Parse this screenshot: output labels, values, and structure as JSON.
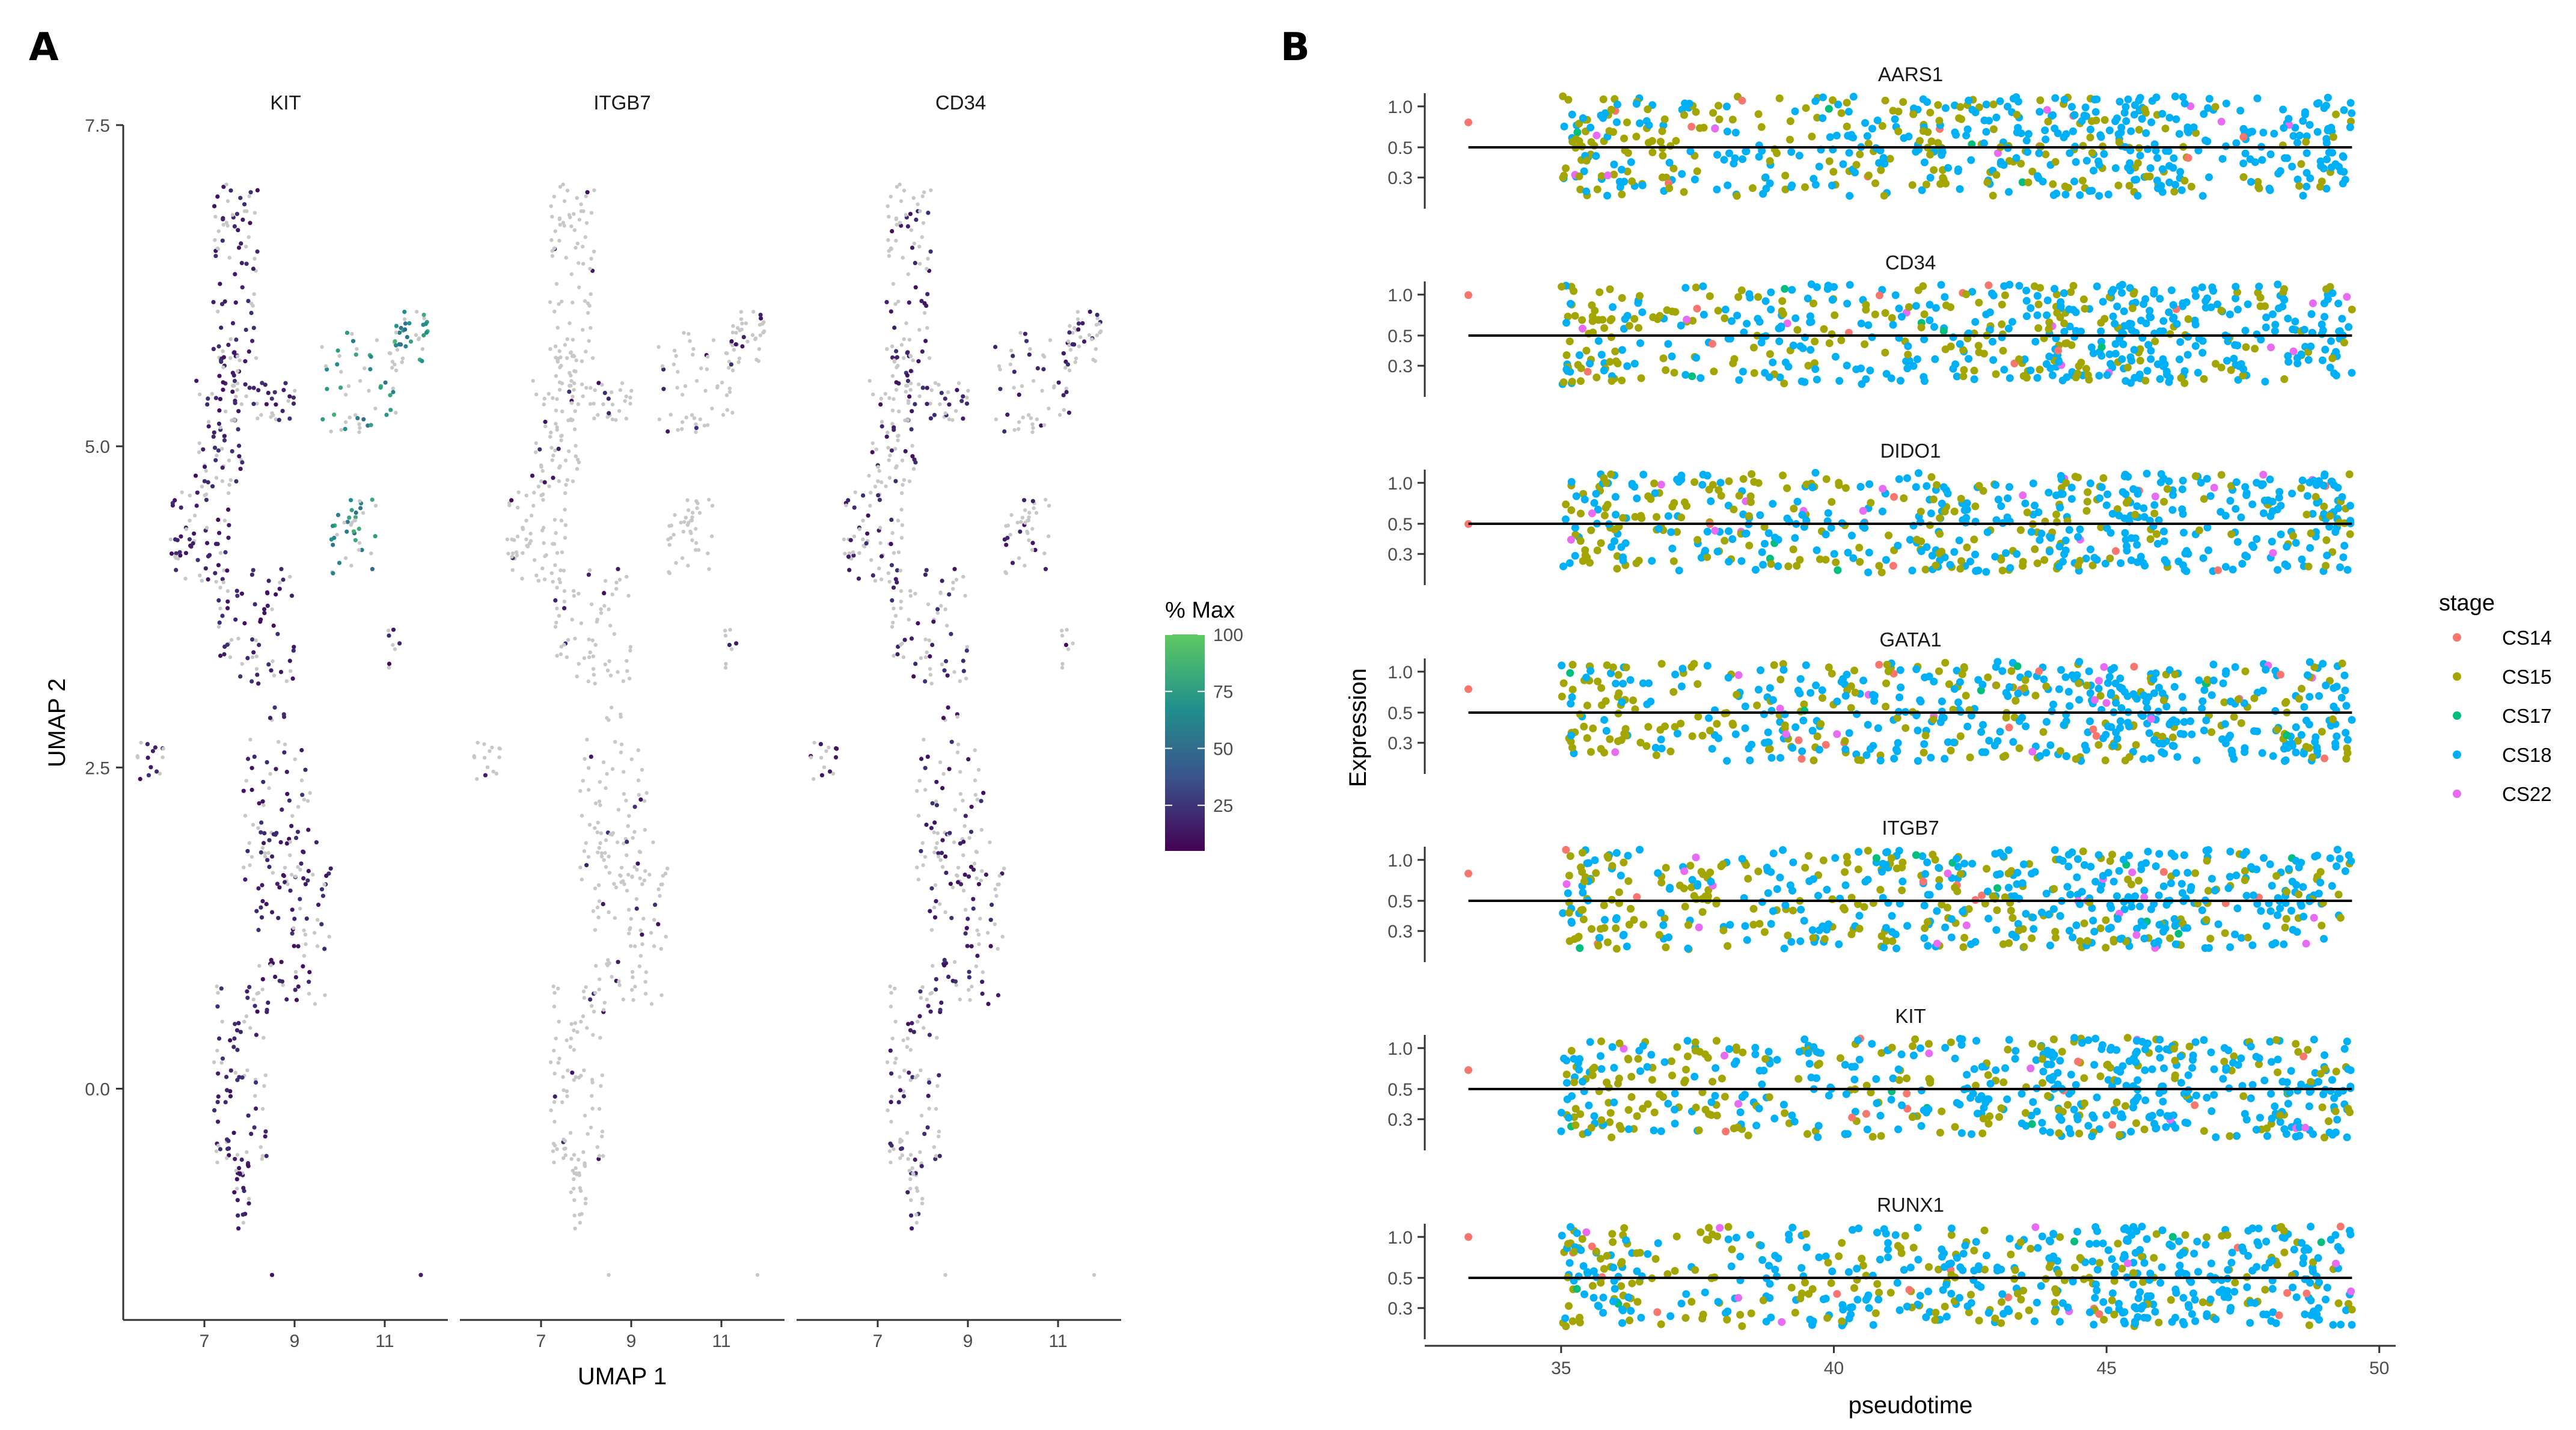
{
  "panel_labels": [
    "A",
    "B"
  ],
  "chart_data": [
    {
      "type": "scatter",
      "panel": "A",
      "facets": [
        "KIT",
        "ITGB7",
        "CD34"
      ],
      "xlabel": "UMAP 1",
      "ylabel": "UMAP 2",
      "xticks": [
        7,
        9,
        11
      ],
      "yticks": [
        0.0,
        2.5,
        5.0,
        7.5
      ],
      "ytick_labels": [
        "0.0",
        "2.5",
        "5.0",
        "7.5"
      ],
      "xlim": [
        5.2,
        12.4
      ],
      "ylim": [
        -1.8,
        7.5
      ],
      "color_scale": {
        "title": "% Max",
        "ticks": [
          25,
          50,
          75,
          100
        ],
        "range": [
          5,
          100
        ],
        "colors": [
          "#440154",
          "#3b528b",
          "#21918c",
          "#5ec962"
        ],
        "unexpressed_color": "#c8c8c8"
      },
      "facet_expression": {
        "KIT": "high",
        "ITGB7": "low",
        "CD34": "medium"
      }
    },
    {
      "type": "scatter",
      "panel": "B",
      "facets": [
        "AARS1",
        "CD34",
        "DIDO1",
        "GATA1",
        "ITGB7",
        "KIT",
        "RUNX1"
      ],
      "xlabel": "pseudotime",
      "ylabel": "Expression",
      "xticks": [
        35,
        40,
        45,
        50
      ],
      "xlim": [
        32.5,
        50.3
      ],
      "yticks": [
        1.0,
        0.5,
        0.3
      ],
      "ytick_labels": [
        "1.0",
        "0.5",
        "0.3"
      ],
      "yscale": "log",
      "trend_value": 0.5,
      "trend_x_range": [
        33.3,
        49.5
      ],
      "legend": {
        "title": "stage",
        "items": [
          {
            "label": "CS14",
            "color": "#f8766d"
          },
          {
            "label": "CS15",
            "color": "#a3a500"
          },
          {
            "label": "CS17",
            "color": "#00bf7d"
          },
          {
            "label": "CS18",
            "color": "#00b0f6"
          },
          {
            "label": "CS22",
            "color": "#e76bf3"
          }
        ]
      }
    }
  ]
}
